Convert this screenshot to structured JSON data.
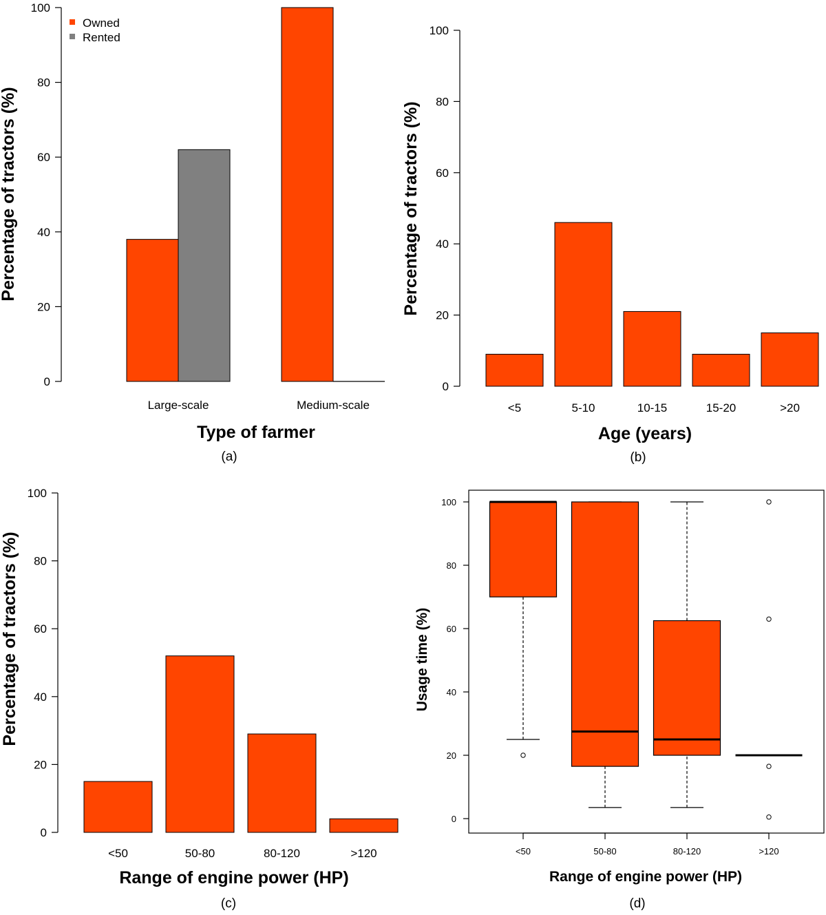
{
  "colors": {
    "owned": "#FF4500",
    "rented": "#808080",
    "axis": "#000000"
  },
  "chart_data": [
    {
      "panel": "(a)",
      "type": "bar",
      "xlabel": "Type of farmer",
      "ylabel": "Percentage of tractors (%)",
      "ylim": [
        0,
        100
      ],
      "yticks": [
        0,
        20,
        40,
        60,
        80,
        100
      ],
      "categories": [
        "Large-scale",
        "Medium-scale"
      ],
      "series": [
        {
          "name": "Owned",
          "values": [
            38,
            100
          ]
        },
        {
          "name": "Rented",
          "values": [
            62,
            0
          ]
        }
      ],
      "legend": [
        "Owned",
        "Rented"
      ],
      "legend_position": "top-left"
    },
    {
      "panel": "(b)",
      "type": "bar",
      "xlabel": "Age (years)",
      "ylabel": "Percentage of tractors (%)",
      "ylim": [
        0,
        100
      ],
      "yticks": [
        0,
        20,
        40,
        60,
        80,
        100
      ],
      "categories": [
        "<5",
        "5-10",
        "10-15",
        "15-20",
        ">20"
      ],
      "values": [
        9,
        46,
        21,
        9,
        15
      ]
    },
    {
      "panel": "(c)",
      "type": "bar",
      "xlabel": "Range of engine power (HP)",
      "ylabel": "Percentage of tractors (%)",
      "ylim": [
        0,
        100
      ],
      "yticks": [
        0,
        20,
        40,
        60,
        80,
        100
      ],
      "categories": [
        "<50",
        "50-80",
        "80-120",
        ">120"
      ],
      "values": [
        15,
        52,
        29,
        4
      ]
    },
    {
      "panel": "(d)",
      "type": "boxplot",
      "xlabel": "Range of engine power (HP)",
      "ylabel": "Usage time (%)",
      "ylim": [
        0,
        100
      ],
      "yticks": [
        0,
        20,
        40,
        60,
        80,
        100
      ],
      "categories": [
        "<50",
        "50-80",
        "80-120",
        ">120"
      ],
      "boxes": [
        {
          "whisker_low": 25,
          "q1": 70,
          "median": 100,
          "q3": 100,
          "whisker_high": 100,
          "outliers": [
            20
          ]
        },
        {
          "whisker_low": 3.5,
          "q1": 16.5,
          "median": 27.5,
          "q3": 100,
          "whisker_high": 100,
          "outliers": []
        },
        {
          "whisker_low": 3.5,
          "q1": 20,
          "median": 25,
          "q3": 62.5,
          "whisker_high": 100,
          "outliers": []
        },
        {
          "whisker_low": 20,
          "q1": 20,
          "median": 20,
          "q3": 20,
          "whisker_high": 20,
          "outliers": [
            100,
            63,
            16.5,
            0.5
          ]
        }
      ]
    }
  ]
}
